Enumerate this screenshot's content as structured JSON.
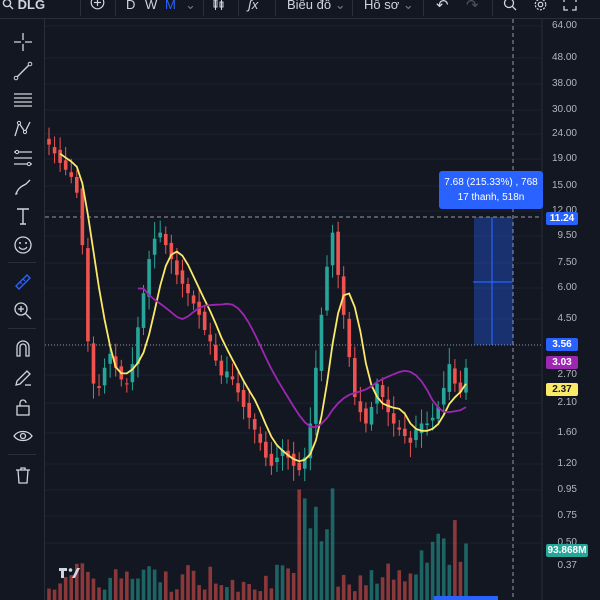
{
  "toolbar": {
    "symbol": "DLG",
    "add_symbol": "+",
    "intervals": [
      "D",
      "W",
      "M"
    ],
    "active_interval": "M",
    "chart_type_label": "Biểu đồ",
    "profile_label": "Hồ sơ"
  },
  "price_axis": {
    "labels": [
      "64.00",
      "48.00",
      "38.00",
      "30.00",
      "24.00",
      "19.00",
      "15.00",
      "12.00",
      "9.50",
      "7.50",
      "6.00",
      "4.50",
      "2.70",
      "2.10",
      "1.60",
      "1.20",
      "0.95",
      "0.75",
      "0.50",
      "0.37"
    ],
    "tags": {
      "crosshair_high": "11.24",
      "crosshair_low": "3.56",
      "ma_purple": "3.03",
      "ma_yellow": "2.37",
      "volume": "93.868M"
    }
  },
  "measure_tooltip": {
    "line1": "7.68 (215.33%) , 768",
    "line2": "17 thanh, 518n"
  },
  "colors": {
    "background": "#131722",
    "up": "#26a69a",
    "down": "#ef5350",
    "ma_long": "#9c27b0",
    "ma_short": "#fbe968",
    "measure": "#2962ff"
  },
  "chart_data": {
    "type": "candlestick",
    "y_scale": "log",
    "ylim": [
      0.37,
      64
    ],
    "series": [
      {
        "name": "price",
        "close_path": [
          21,
          19.5,
          18,
          17,
          16,
          14,
          9,
          4,
          2.8,
          2.7,
          3.2,
          3.6,
          3.2,
          2.9,
          2.8,
          3.3,
          4.5,
          6,
          8,
          9.5,
          10,
          9,
          8,
          7,
          6.5,
          6,
          5.5,
          5,
          4.4,
          4,
          3.4,
          3,
          3.1,
          2.9,
          2.6,
          2.3,
          2.1,
          1.9,
          1.7,
          1.5,
          1.4,
          1.5,
          1.6,
          1.5,
          1.4,
          1.35,
          1.5,
          2,
          3.2,
          5,
          7.5,
          10,
          7,
          5,
          3.5,
          2.5,
          2.2,
          2,
          2.3,
          2.8,
          2.5,
          2.2,
          2,
          1.9,
          1.8,
          1.7,
          1.9,
          2,
          2,
          2.1,
          2.3,
          2.7,
          3.3,
          2.8,
          2.6,
          3.2
        ]
      }
    ]
  }
}
